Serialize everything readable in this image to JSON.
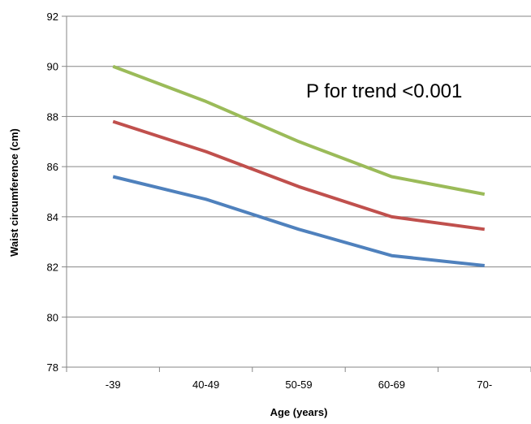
{
  "chart_data": {
    "type": "line",
    "categories": [
      "-39",
      "40-49",
      "50-59",
      "60-69",
      "70-"
    ],
    "series": [
      {
        "values": [
          90.0,
          88.6,
          87.0,
          85.6,
          84.9
        ],
        "color": "#9bbb59"
      },
      {
        "values": [
          87.8,
          86.6,
          85.2,
          84.0,
          83.5
        ],
        "color": "#c0504d"
      },
      {
        "values": [
          85.6,
          84.7,
          83.5,
          82.45,
          82.05
        ],
        "color": "#4f81bd"
      }
    ],
    "xlabel": "Age (years)",
    "ylabel": "Waist circumference (cm)",
    "ylim": [
      78,
      92
    ],
    "yticks": [
      "78",
      "80",
      "82",
      "84",
      "86",
      "88",
      "90",
      "92"
    ],
    "grid": true,
    "annotation": "P for trend <0.001"
  }
}
